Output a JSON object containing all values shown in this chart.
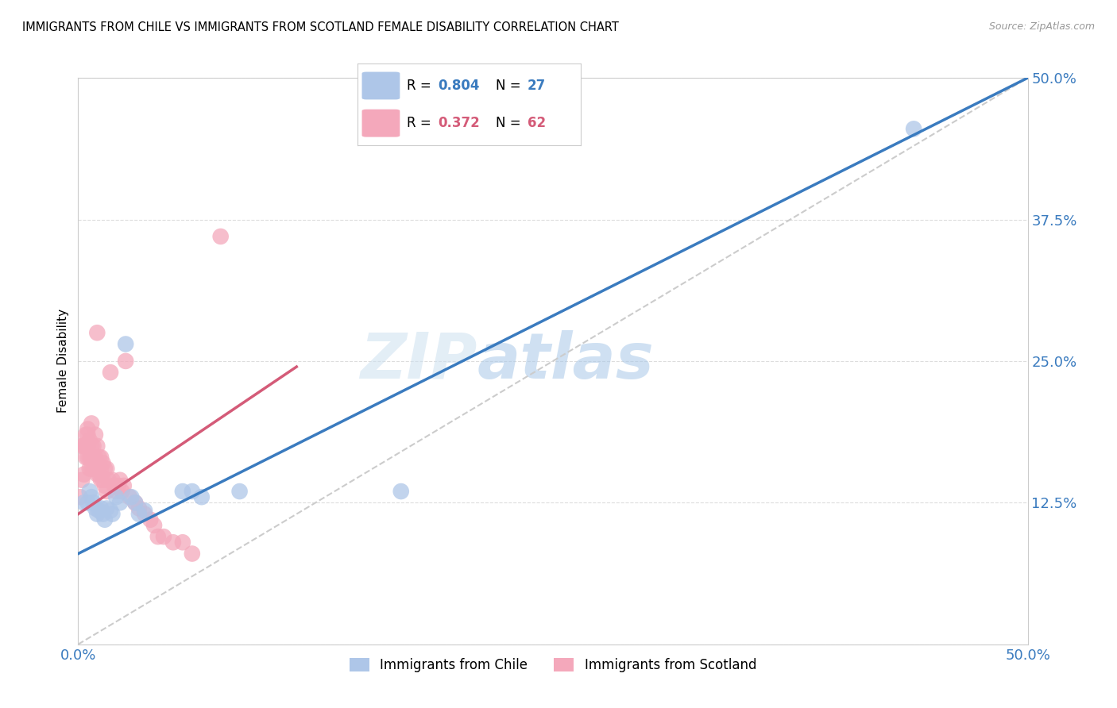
{
  "title": "IMMIGRANTS FROM CHILE VS IMMIGRANTS FROM SCOTLAND FEMALE DISABILITY CORRELATION CHART",
  "source": "Source: ZipAtlas.com",
  "ylabel": "Female Disability",
  "xlim": [
    0.0,
    0.5
  ],
  "ylim": [
    0.0,
    0.5
  ],
  "xticks": [
    0.0,
    0.125,
    0.25,
    0.375,
    0.5
  ],
  "yticks": [
    0.0,
    0.125,
    0.25,
    0.375,
    0.5
  ],
  "xticklabels": [
    "0.0%",
    "",
    "",
    "",
    "50.0%"
  ],
  "yticklabels_right": [
    "",
    "12.5%",
    "25.0%",
    "37.5%",
    "50.0%"
  ],
  "chile_color": "#aec6e8",
  "scotland_color": "#f4a8bb",
  "chile_line_color": "#3a7bbf",
  "scotland_line_color": "#d45b78",
  "diagonal_color": "#cccccc",
  "legend_chile_R": "0.804",
  "legend_chile_N": "27",
  "legend_scotland_R": "0.372",
  "legend_scotland_N": "62",
  "watermark_zip": "ZIP",
  "watermark_atlas": "atlas",
  "chile_line_x0": 0.0,
  "chile_line_y0": 0.08,
  "chile_line_x1": 0.5,
  "chile_line_y1": 0.5,
  "scotland_line_x0": 0.0,
  "scotland_line_y0": 0.115,
  "scotland_line_x1": 0.115,
  "scotland_line_y1": 0.245,
  "chile_scatter_x": [
    0.003,
    0.005,
    0.006,
    0.007,
    0.008,
    0.009,
    0.01,
    0.011,
    0.012,
    0.013,
    0.014,
    0.015,
    0.017,
    0.018,
    0.02,
    0.022,
    0.025,
    0.028,
    0.03,
    0.032,
    0.035,
    0.055,
    0.06,
    0.065,
    0.085,
    0.17,
    0.44
  ],
  "chile_scatter_y": [
    0.125,
    0.125,
    0.135,
    0.13,
    0.125,
    0.12,
    0.115,
    0.118,
    0.12,
    0.115,
    0.11,
    0.12,
    0.118,
    0.115,
    0.13,
    0.125,
    0.265,
    0.13,
    0.125,
    0.115,
    0.118,
    0.135,
    0.135,
    0.13,
    0.135,
    0.135,
    0.455
  ],
  "scotland_scatter_x": [
    0.001,
    0.002,
    0.002,
    0.003,
    0.003,
    0.004,
    0.004,
    0.004,
    0.005,
    0.005,
    0.005,
    0.005,
    0.006,
    0.006,
    0.006,
    0.007,
    0.007,
    0.007,
    0.007,
    0.008,
    0.008,
    0.008,
    0.009,
    0.009,
    0.009,
    0.01,
    0.01,
    0.01,
    0.011,
    0.011,
    0.012,
    0.012,
    0.012,
    0.013,
    0.013,
    0.014,
    0.014,
    0.015,
    0.015,
    0.016,
    0.017,
    0.018,
    0.019,
    0.02,
    0.021,
    0.022,
    0.023,
    0.024,
    0.025,
    0.027,
    0.03,
    0.032,
    0.035,
    0.038,
    0.04,
    0.042,
    0.045,
    0.05,
    0.055,
    0.06,
    0.075,
    0.01
  ],
  "scotland_scatter_y": [
    0.13,
    0.145,
    0.175,
    0.15,
    0.175,
    0.165,
    0.175,
    0.185,
    0.165,
    0.175,
    0.185,
    0.19,
    0.155,
    0.165,
    0.18,
    0.155,
    0.165,
    0.175,
    0.195,
    0.155,
    0.165,
    0.175,
    0.155,
    0.165,
    0.185,
    0.15,
    0.16,
    0.175,
    0.15,
    0.165,
    0.145,
    0.155,
    0.165,
    0.145,
    0.16,
    0.14,
    0.155,
    0.135,
    0.155,
    0.145,
    0.24,
    0.145,
    0.14,
    0.135,
    0.14,
    0.145,
    0.135,
    0.14,
    0.25,
    0.13,
    0.125,
    0.12,
    0.115,
    0.11,
    0.105,
    0.095,
    0.095,
    0.09,
    0.09,
    0.08,
    0.36,
    0.275
  ]
}
